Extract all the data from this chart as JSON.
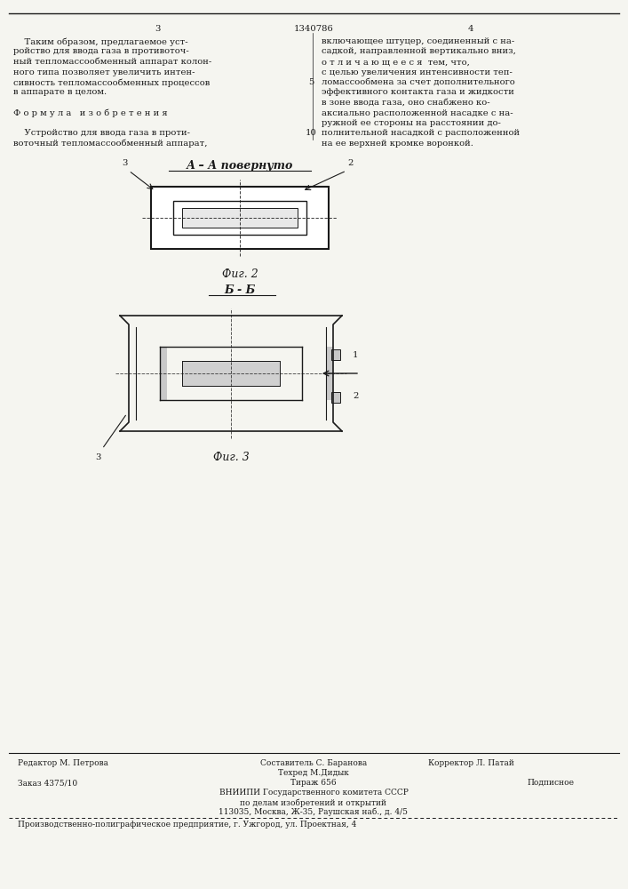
{
  "bg_color": "#f5f5f0",
  "text_color": "#1a1a1a",
  "page_num_left": "3",
  "page_num_center": "1340786",
  "page_num_right": "4",
  "col_left_text": [
    "    Таким образом, предлагаемое уст-",
    "ройство для ввода газа в противоточ-",
    "ный тепломассообменный аппарат колон-",
    "ного типа позволяет увеличить интен-",
    "сивность тепломассообменных процессов",
    "в аппарате в целом.",
    "",
    "Ф о р м у л а   и з о б р е т е н и я",
    "",
    "    Устройство для ввода газа в проти-",
    "воточный тепломассообменный аппарат,"
  ],
  "col_right_text": [
    "включающее штуцер, соединенный с на-",
    "садкой, направленной вертикально вниз,",
    "о т л и ч а ю щ е е с я  тем, что,",
    "с целью увеличения интенсивности теп-",
    "ломассообмена за счет дополнительного",
    "эффективного контакта газа и жидкости",
    "в зоне ввода газа, оно снабжено ко-",
    "аксиально расположенной насадке с на-",
    "ружной ее стороны на расстоянии до-",
    "полнительной насадкой с расположенной",
    "на ее верхней кромке воронкой."
  ],
  "line_number_5": "5",
  "line_number_10": "10",
  "fig2_label": "А – А повернуто",
  "fig2_caption": "Фиг. 2",
  "fig3_label": "Б - Б",
  "fig3_caption": "Фиг. 3",
  "label_1": "1",
  "label_2": "2",
  "label_3_fig2": "3",
  "label_3_fig3": "3",
  "footer_editor": "Редактор М. Петрова",
  "footer_composer": "Составитель С. Баранова",
  "footer_tech": "Техред М.Дидык",
  "footer_corrector": "Корректор Л. Патай",
  "footer_order": "Заказ 4375/10",
  "footer_edition": "Тираж 656",
  "footer_subscription": "Подписное",
  "footer_org1": "ВНИИПИ Государственного комитета СССР",
  "footer_org2": "по делам изобретений и открытий",
  "footer_org3": "113035, Москва, Ж-35, Раушская наб., д. 4/5",
  "footer_enterprise": "Производственно-полиграфическое предприятие, г. Ужгород, ул. Проектная, 4"
}
